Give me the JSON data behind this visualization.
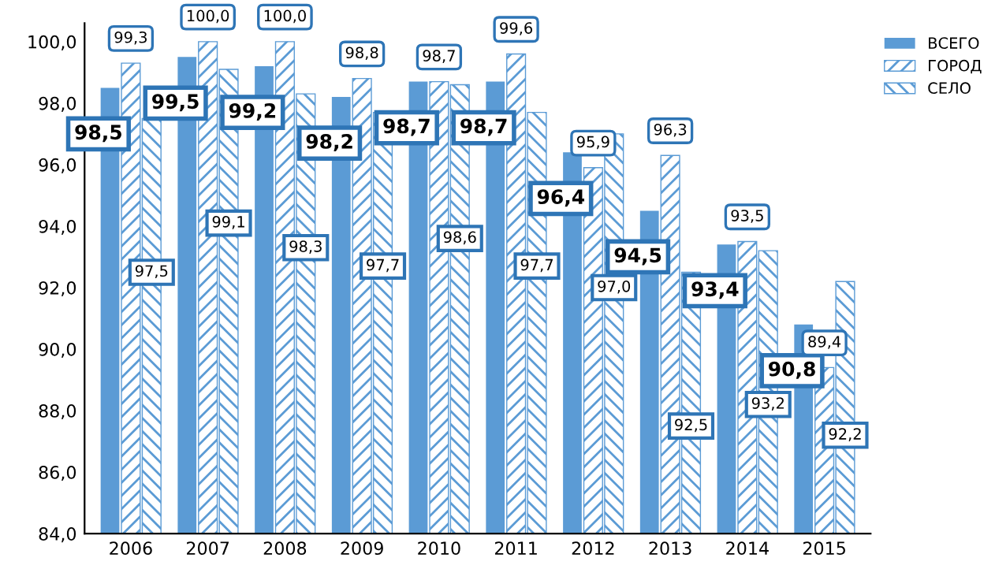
{
  "chart_data": {
    "type": "bar",
    "categories": [
      "2006",
      "2007",
      "2008",
      "2009",
      "2010",
      "2011",
      "2012",
      "2013",
      "2014",
      "2015"
    ],
    "series": [
      {
        "name": "ВСЕГО",
        "color": "#5b9bd5",
        "values": [
          98.5,
          99.5,
          99.2,
          98.2,
          98.7,
          98.7,
          96.4,
          94.5,
          93.4,
          90.8
        ],
        "value_labels": [
          "98,5",
          "99,5",
          "99,2",
          "98,2",
          "98,7",
          "98,7",
          "96,4",
          "94,5",
          "93,4",
          "90,8"
        ]
      },
      {
        "name": "ГОРОД",
        "color": "#5b9bd5",
        "values": [
          99.3,
          100.0,
          100.0,
          98.8,
          98.7,
          99.6,
          95.9,
          96.3,
          93.5,
          89.4
        ],
        "value_labels": [
          "99,3",
          "100,0",
          "100,0",
          "98,8",
          "98,7",
          "99,6",
          "95,9",
          "96,3",
          "93,5",
          "89,4"
        ]
      },
      {
        "name": "СЕЛО",
        "color": "#5b9bd5",
        "values": [
          97.5,
          99.1,
          98.3,
          97.7,
          98.6,
          97.7,
          97.0,
          92.5,
          93.2,
          92.2
        ],
        "value_labels": [
          "97,5",
          "99,1",
          "98,3",
          "97,7",
          "98,6",
          "97,7",
          "97,0",
          "92,5",
          "93,2",
          "92,2"
        ]
      }
    ],
    "ylim": [
      84,
      100.6
    ],
    "yticks": [
      {
        "value": 84,
        "label": "84,0"
      },
      {
        "value": 86,
        "label": "86,0"
      },
      {
        "value": 88,
        "label": "88,0"
      },
      {
        "value": 90,
        "label": "90,0"
      },
      {
        "value": 92,
        "label": "92,0"
      },
      {
        "value": 94,
        "label": "94,0"
      },
      {
        "value": 96,
        "label": "96,0"
      },
      {
        "value": 98,
        "label": "98,0"
      },
      {
        "value": 100,
        "label": "100,0"
      }
    ],
    "grid": false,
    "legend": "top right"
  }
}
